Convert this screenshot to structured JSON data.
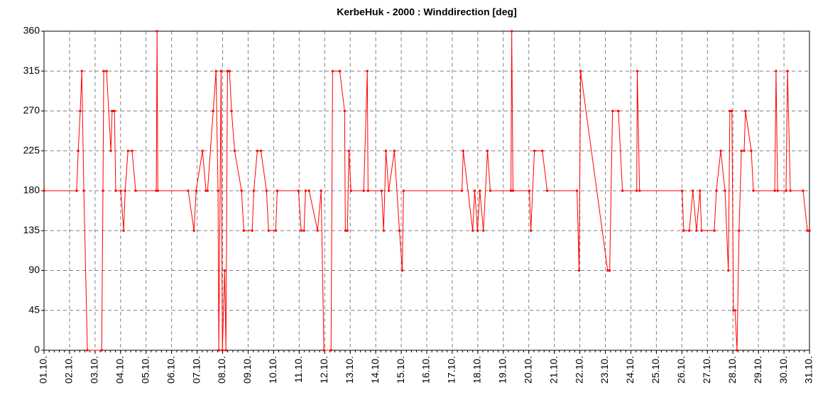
{
  "chart_data": {
    "type": "line",
    "title": "KerbeHuk - 2000 : Winddirection [deg]",
    "x": [
      1.0,
      2.28,
      2.34,
      2.42,
      2.48,
      2.56,
      2.7,
      3.26,
      3.31,
      3.34,
      3.45,
      3.62,
      3.67,
      3.76,
      3.81,
      4.01,
      4.12,
      4.18,
      4.29,
      4.45,
      4.59,
      5.4,
      5.43,
      5.46,
      6.65,
      6.88,
      6.96,
      7.21,
      7.35,
      7.41,
      7.63,
      7.74,
      7.82,
      7.85,
      7.94,
      7.99,
      8.08,
      8.13,
      8.19,
      8.27,
      8.35,
      8.47,
      8.74,
      8.83,
      9.16,
      9.22,
      9.36,
      9.5,
      9.72,
      9.8,
      10.08,
      10.14,
      10.97,
      11.08,
      11.19,
      11.25,
      11.39,
      11.72,
      11.86,
      11.97,
      12.25,
      12.31,
      12.59,
      12.78,
      12.81,
      12.89,
      12.95,
      13.03,
      13.53,
      13.67,
      13.7,
      14.23,
      14.31,
      14.4,
      14.51,
      14.73,
      14.93,
      15.04,
      15.09,
      17.38,
      17.43,
      17.8,
      17.88,
      17.99,
      18.08,
      18.22,
      18.38,
      18.49,
      19.3,
      19.33,
      19.38,
      20.02,
      20.08,
      20.22,
      20.53,
      20.72,
      21.89,
      21.97,
      22.03,
      23.09,
      23.17,
      23.28,
      23.51,
      23.67,
      24.23,
      24.25,
      24.34,
      26.01,
      26.07,
      26.29,
      26.43,
      26.57,
      26.71,
      26.77,
      27.27,
      27.35,
      27.52,
      27.69,
      27.82,
      27.88,
      27.96,
      28.02,
      28.08,
      28.16,
      28.24,
      28.33,
      28.44,
      28.49,
      28.72,
      28.8,
      29.64,
      29.69,
      29.75,
      30.08,
      30.14,
      30.25,
      30.75,
      30.92,
      31.0
    ],
    "series": [
      {
        "name": "Winddirection",
        "color": "#ff0000",
        "values": [
          180,
          180,
          225,
          270,
          315,
          180,
          0,
          0,
          180,
          315,
          315,
          225,
          270,
          270,
          180,
          180,
          135,
          180,
          225,
          225,
          180,
          180,
          360,
          180,
          180,
          135,
          180,
          225,
          180,
          180,
          270,
          315,
          180,
          0,
          315,
          0,
          90,
          0,
          315,
          315,
          270,
          225,
          180,
          135,
          135,
          180,
          225,
          225,
          180,
          135,
          135,
          180,
          180,
          135,
          135,
          180,
          180,
          135,
          180,
          0,
          0,
          315,
          315,
          270,
          135,
          135,
          225,
          180,
          180,
          315,
          180,
          180,
          135,
          225,
          180,
          225,
          135,
          90,
          180,
          180,
          225,
          135,
          180,
          135,
          180,
          135,
          225,
          180,
          180,
          360,
          180,
          180,
          135,
          225,
          225,
          180,
          180,
          90,
          315,
          90,
          90,
          270,
          270,
          180,
          180,
          315,
          180,
          180,
          135,
          135,
          180,
          135,
          180,
          135,
          135,
          180,
          225,
          180,
          90,
          270,
          270,
          45,
          45,
          0,
          135,
          225,
          225,
          270,
          225,
          180,
          180,
          315,
          180,
          180,
          315,
          180,
          180,
          135,
          135
        ]
      }
    ],
    "xlim": [
      1,
      31
    ],
    "xticks": [
      {
        "value": 1,
        "label": "01.10."
      },
      {
        "value": 2,
        "label": "02.10."
      },
      {
        "value": 3,
        "label": "03.10."
      },
      {
        "value": 4,
        "label": "04.10."
      },
      {
        "value": 5,
        "label": "05.10."
      },
      {
        "value": 6,
        "label": "06.10."
      },
      {
        "value": 7,
        "label": "07.10."
      },
      {
        "value": 8,
        "label": "08.10."
      },
      {
        "value": 9,
        "label": "09.10."
      },
      {
        "value": 10,
        "label": "10.10."
      },
      {
        "value": 11,
        "label": "11.10."
      },
      {
        "value": 12,
        "label": "12.10."
      },
      {
        "value": 13,
        "label": "13.10."
      },
      {
        "value": 14,
        "label": "14.10."
      },
      {
        "value": 15,
        "label": "15.10."
      },
      {
        "value": 16,
        "label": "16.10."
      },
      {
        "value": 17,
        "label": "17.10."
      },
      {
        "value": 18,
        "label": "18.10."
      },
      {
        "value": 19,
        "label": "19.10."
      },
      {
        "value": 20,
        "label": "20.10."
      },
      {
        "value": 21,
        "label": "21.10."
      },
      {
        "value": 22,
        "label": "22.10."
      },
      {
        "value": 23,
        "label": "23.10."
      },
      {
        "value": 24,
        "label": "24.10."
      },
      {
        "value": 25,
        "label": "25.10."
      },
      {
        "value": 26,
        "label": "26.10."
      },
      {
        "value": 27,
        "label": "27.10."
      },
      {
        "value": 28,
        "label": "28.10."
      },
      {
        "value": 29,
        "label": "29.10."
      },
      {
        "value": 30,
        "label": "30.10."
      },
      {
        "value": 31,
        "label": "31.10."
      }
    ],
    "ylim": [
      0,
      360
    ],
    "yticks": [
      0,
      45,
      90,
      135,
      180,
      225,
      270,
      315,
      360
    ],
    "grid": true
  }
}
